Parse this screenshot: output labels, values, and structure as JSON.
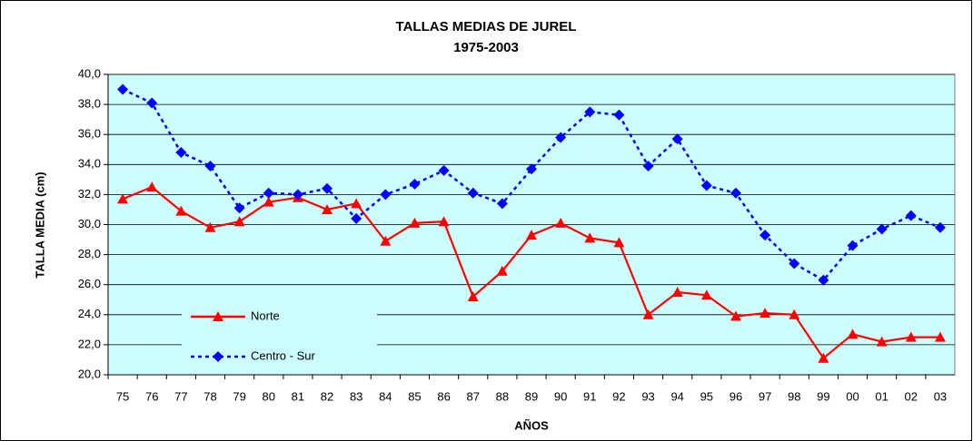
{
  "chart_data": {
    "type": "line",
    "title": "TALLAS MEDIAS DE JUREL",
    "subtitle": "1975-2003",
    "x_label": "AÑOS",
    "y_label": "TALLA MEDIA (cm)",
    "categories": [
      "75",
      "76",
      "77",
      "78",
      "79",
      "80",
      "81",
      "82",
      "83",
      "84",
      "85",
      "86",
      "87",
      "88",
      "89",
      "90",
      "91",
      "92",
      "93",
      "94",
      "95",
      "96",
      "97",
      "98",
      "99",
      "00",
      "01",
      "02",
      "03"
    ],
    "series": [
      {
        "name": "Norte",
        "color": "#ff0000",
        "marker": "triangle",
        "dashed": false,
        "values": [
          31.7,
          32.5,
          30.9,
          29.8,
          30.2,
          31.5,
          31.8,
          31.0,
          31.4,
          28.9,
          30.1,
          30.2,
          25.2,
          26.9,
          29.3,
          30.1,
          29.1,
          28.8,
          24.0,
          25.5,
          25.3,
          23.9,
          24.1,
          24.0,
          21.1,
          22.7,
          22.2,
          22.5,
          22.5
        ]
      },
      {
        "name": "Centro - Sur",
        "color": "#0000ff",
        "marker": "diamond",
        "dashed": true,
        "values": [
          39.0,
          38.1,
          34.8,
          33.9,
          31.1,
          32.1,
          32.0,
          32.4,
          30.4,
          32.0,
          32.7,
          33.6,
          32.1,
          31.4,
          33.7,
          35.8,
          37.5,
          37.3,
          33.9,
          35.7,
          32.6,
          32.1,
          29.3,
          27.4,
          26.3,
          28.6,
          29.7,
          30.6,
          29.8
        ]
      }
    ],
    "ylim": [
      20,
      40
    ],
    "yticks": [
      {
        "value": 20,
        "label": "20,0"
      },
      {
        "value": 22,
        "label": "22,0"
      },
      {
        "value": 24,
        "label": "24,0"
      },
      {
        "value": 26,
        "label": "26,0"
      },
      {
        "value": 28,
        "label": "28,0"
      },
      {
        "value": 30,
        "label": "30,0"
      },
      {
        "value": 32,
        "label": "32,0"
      },
      {
        "value": 34,
        "label": "34,0"
      },
      {
        "value": 36,
        "label": "36,0"
      },
      {
        "value": 38,
        "label": "38,0"
      },
      {
        "value": 40,
        "label": "40,0"
      }
    ],
    "grid": true,
    "plot_background": "#ccffff",
    "legend": "lower left"
  }
}
